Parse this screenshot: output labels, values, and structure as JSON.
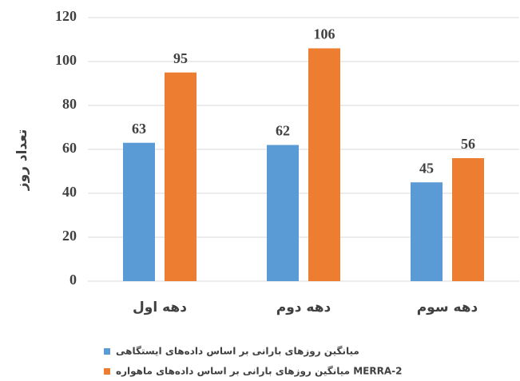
{
  "chart_data": {
    "type": "bar",
    "y_label": "تعداد روز",
    "categories": [
      "دهه اول",
      "دهه دوم",
      "دهه سوم"
    ],
    "series": [
      {
        "name": "میانگین روزهای بارانی بر اساس داده‌های ایستگاهی",
        "color": "#5b9bd5",
        "values": [
          63,
          62,
          45
        ]
      },
      {
        "name": "میانگین روزهای بارانی بر اساس داده‌های ماهواره MERRA-2",
        "color": "#ed7d31",
        "values": [
          95,
          106,
          56
        ]
      }
    ],
    "ylim": [
      0,
      120
    ],
    "yticks": [
      0,
      20,
      40,
      60,
      80,
      100,
      120
    ],
    "grid": true,
    "legend": "bottom"
  }
}
